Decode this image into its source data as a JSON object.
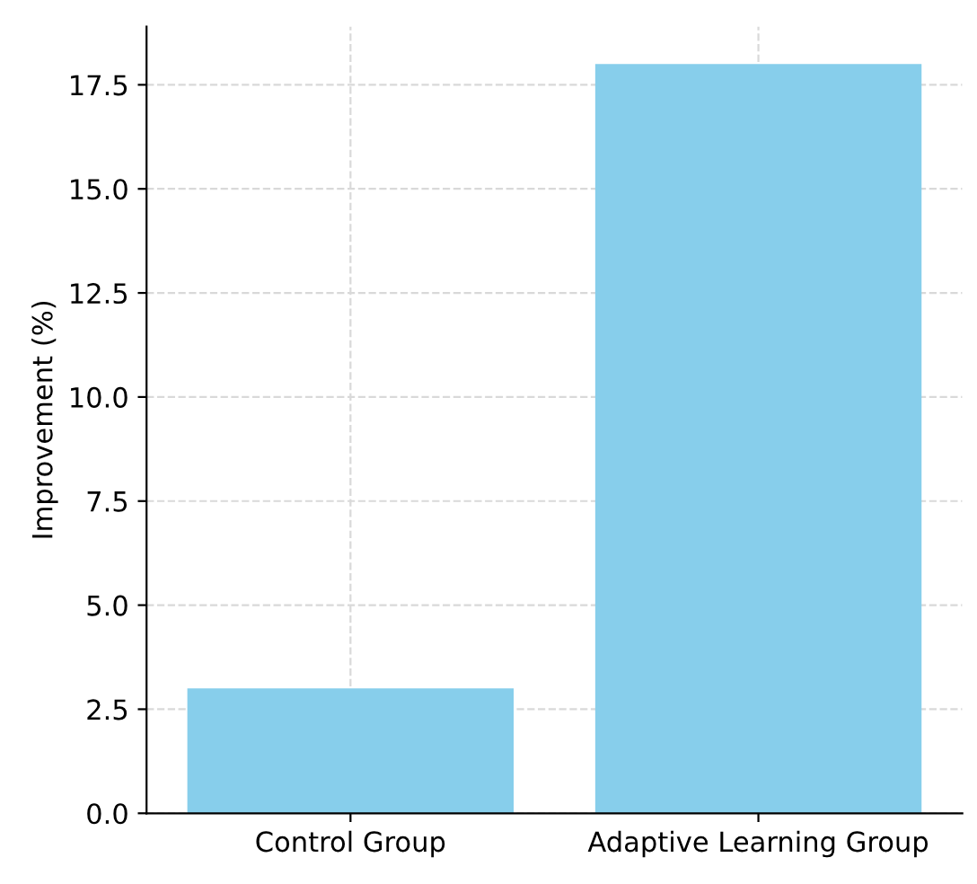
{
  "chart_data": {
    "type": "bar",
    "ylabel": "Improvement (%)",
    "categories": [
      "Control Group",
      "Adaptive Learning Group"
    ],
    "values": [
      3,
      18
    ],
    "color": "#87ceeb",
    "ylim": [
      0,
      18.9
    ],
    "yticks": [
      {
        "value": 0,
        "label": "0.0"
      },
      {
        "value": 2.5,
        "label": "2.5"
      },
      {
        "value": 5,
        "label": "5.0"
      },
      {
        "value": 7.5,
        "label": "7.5"
      },
      {
        "value": 10,
        "label": "10.0"
      },
      {
        "value": 12.5,
        "label": "12.5"
      },
      {
        "value": 15,
        "label": "15.0"
      },
      {
        "value": 17.5,
        "label": "17.5"
      }
    ],
    "grid": true
  }
}
